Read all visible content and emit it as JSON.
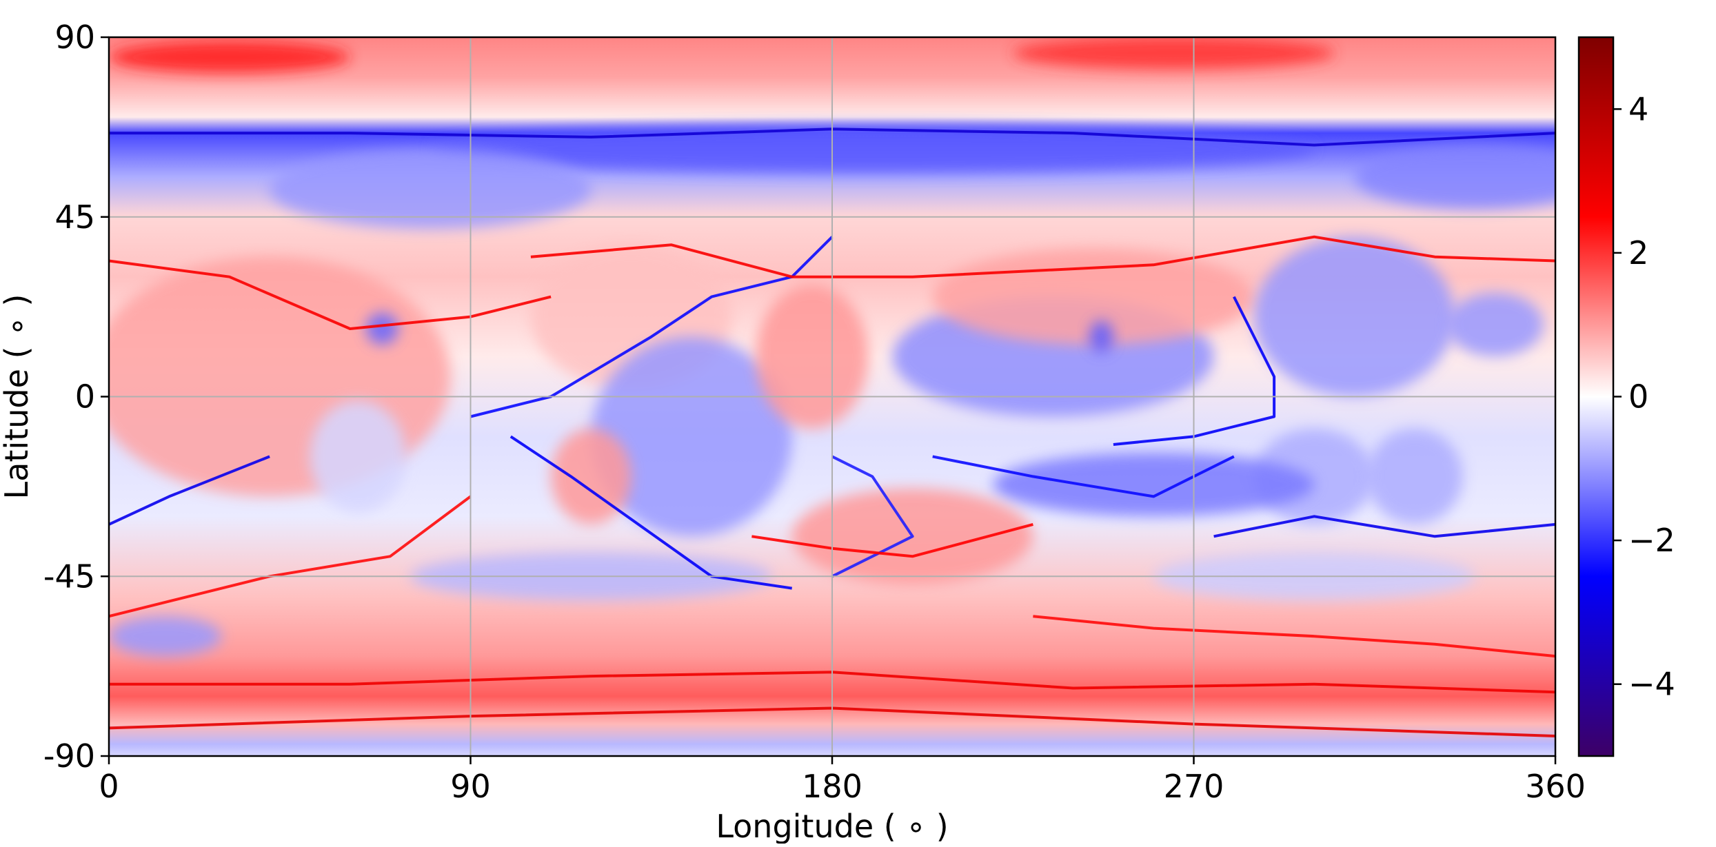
{
  "chart_data": {
    "type": "heatmap",
    "title": "",
    "xlabel": "Longitude ( ∘ )",
    "ylabel": "Latitude ( ∘ )",
    "xlim": [
      0,
      360
    ],
    "ylim": [
      -90,
      90
    ],
    "xticks": [
      {
        "value": 0,
        "label": "0"
      },
      {
        "value": 90,
        "label": "90"
      },
      {
        "value": 180,
        "label": "180"
      },
      {
        "value": 270,
        "label": "270"
      },
      {
        "value": 360,
        "label": "360"
      }
    ],
    "yticks": [
      {
        "value": 90,
        "label": "90"
      },
      {
        "value": 45,
        "label": "45"
      },
      {
        "value": 0,
        "label": "0"
      },
      {
        "value": -45,
        "label": "-45"
      },
      {
        "value": -90,
        "label": "-90"
      }
    ],
    "grid": true,
    "colorbar": {
      "colormap": "seismic",
      "range": [
        -5,
        5
      ],
      "ticks": [
        {
          "value": 4,
          "label": "4"
        },
        {
          "value": 2,
          "label": "2"
        },
        {
          "value": 0,
          "label": "0"
        },
        {
          "value": -2,
          "label": "−2"
        },
        {
          "value": -4,
          "label": "−4"
        }
      ],
      "colors": [
        "#3d0066",
        "#0000ff",
        "#ffffff",
        "#ff0000",
        "#7f0000"
      ]
    },
    "background_field": {
      "description_note": null,
      "lat_bands": [
        {
          "lat": 90,
          "value": 1.2
        },
        {
          "lat": 80,
          "value": 0.9
        },
        {
          "lat": 70,
          "value": 0.2
        },
        {
          "lat": 66,
          "value": -1.8
        },
        {
          "lat": 55,
          "value": -0.8
        },
        {
          "lat": 45,
          "value": 0.4
        },
        {
          "lat": 30,
          "value": 0.6
        },
        {
          "lat": 10,
          "value": 0.2
        },
        {
          "lat": -10,
          "value": -0.3
        },
        {
          "lat": -30,
          "value": -0.2
        },
        {
          "lat": -50,
          "value": 0.6
        },
        {
          "lat": -65,
          "value": 1.0
        },
        {
          "lat": -75,
          "value": 1.6
        },
        {
          "lat": -82,
          "value": 0.7
        },
        {
          "lat": -87,
          "value": -0.7
        },
        {
          "lat": -90,
          "value": -0.4
        }
      ],
      "features": [
        {
          "lon": 30,
          "lat": 85,
          "rx": 30,
          "ry": 4,
          "value": 2.2
        },
        {
          "lon": 265,
          "lat": 86,
          "rx": 40,
          "ry": 4,
          "value": 2.0
        },
        {
          "lon": 190,
          "lat": 62,
          "rx": 110,
          "ry": 6,
          "value": -1.6
        },
        {
          "lon": 80,
          "lat": 52,
          "rx": 40,
          "ry": 10,
          "value": -1.0
        },
        {
          "lon": 340,
          "lat": 55,
          "rx": 30,
          "ry": 8,
          "value": -1.2
        },
        {
          "lon": 40,
          "lat": 5,
          "rx": 45,
          "ry": 30,
          "value": 0.9
        },
        {
          "lon": 62,
          "lat": -15,
          "rx": 12,
          "ry": 14,
          "value": -0.4
        },
        {
          "lon": 68,
          "lat": 17,
          "rx": 4,
          "ry": 4,
          "value": -1.5
        },
        {
          "lon": 14,
          "lat": -60,
          "rx": 14,
          "ry": 5,
          "value": -1.0
        },
        {
          "lon": 130,
          "lat": 20,
          "rx": 25,
          "ry": 18,
          "value": 0.6
        },
        {
          "lon": 145,
          "lat": -10,
          "rx": 25,
          "ry": 25,
          "value": -1.0
        },
        {
          "lon": 120,
          "lat": -20,
          "rx": 10,
          "ry": 12,
          "value": 1.0
        },
        {
          "lon": 175,
          "lat": 10,
          "rx": 14,
          "ry": 18,
          "value": 1.0
        },
        {
          "lon": 235,
          "lat": 10,
          "rx": 40,
          "ry": 15,
          "value": -1.1
        },
        {
          "lon": 245,
          "lat": 25,
          "rx": 40,
          "ry": 12,
          "value": 0.9
        },
        {
          "lon": 247,
          "lat": 15,
          "rx": 3,
          "ry": 4,
          "value": -1.6
        },
        {
          "lon": 310,
          "lat": 20,
          "rx": 25,
          "ry": 20,
          "value": -1.0
        },
        {
          "lon": 300,
          "lat": -20,
          "rx": 15,
          "ry": 12,
          "value": -0.8
        },
        {
          "lon": 325,
          "lat": -20,
          "rx": 12,
          "ry": 12,
          "value": -0.8
        },
        {
          "lon": 260,
          "lat": -22,
          "rx": 40,
          "ry": 8,
          "value": -1.3
        },
        {
          "lon": 200,
          "lat": -35,
          "rx": 30,
          "ry": 12,
          "value": 1.0
        },
        {
          "lon": 345,
          "lat": 18,
          "rx": 12,
          "ry": 8,
          "value": -1.0
        },
        {
          "lon": 120,
          "lat": -45,
          "rx": 45,
          "ry": 6,
          "value": -0.7
        },
        {
          "lon": 300,
          "lat": -45,
          "rx": 40,
          "ry": 6,
          "value": -0.5
        }
      ],
      "fronts": [
        {
          "value": -3.2,
          "points": [
            [
              0,
              66
            ],
            [
              60,
              66
            ],
            [
              120,
              65
            ],
            [
              180,
              67
            ],
            [
              240,
              66
            ],
            [
              300,
              63
            ],
            [
              360,
              66
            ]
          ]
        },
        {
          "value": -2.6,
          "points": [
            [
              100,
              -10
            ],
            [
              115,
              -20
            ],
            [
              150,
              -45
            ],
            [
              170,
              -48
            ]
          ]
        },
        {
          "value": -2.8,
          "points": [
            [
              0,
              -32
            ],
            [
              15,
              -25
            ],
            [
              40,
              -15
            ]
          ]
        },
        {
          "value": -2.8,
          "points": [
            [
              275,
              -35
            ],
            [
              300,
              -30
            ],
            [
              330,
              -35
            ],
            [
              360,
              -32
            ]
          ]
        },
        {
          "value": -2.4,
          "points": [
            [
              205,
              -15
            ],
            [
              230,
              -20
            ],
            [
              260,
              -25
            ],
            [
              280,
              -15
            ]
          ]
        },
        {
          "value": -2.6,
          "points": [
            [
              250,
              -12
            ],
            [
              270,
              -10
            ],
            [
              290,
              -5
            ],
            [
              290,
              5
            ],
            [
              280,
              25
            ]
          ]
        },
        {
          "value": -2.4,
          "points": [
            [
              90,
              -5
            ],
            [
              110,
              0
            ],
            [
              135,
              15
            ],
            [
              150,
              25
            ],
            [
              170,
              30
            ],
            [
              180,
              40
            ]
          ]
        },
        {
          "value": -2.2,
          "points": [
            [
              180,
              -15
            ],
            [
              190,
              -20
            ],
            [
              200,
              -35
            ],
            [
              180,
              -45
            ]
          ]
        },
        {
          "value": 2.8,
          "points": [
            [
              0,
              -72
            ],
            [
              60,
              -72
            ],
            [
              120,
              -70
            ],
            [
              180,
              -69
            ],
            [
              240,
              -73
            ],
            [
              300,
              -72
            ],
            [
              360,
              -74
            ]
          ]
        },
        {
          "value": 3.0,
          "points": [
            [
              0,
              -83
            ],
            [
              90,
              -80
            ],
            [
              180,
              -78
            ],
            [
              270,
              -82
            ],
            [
              360,
              -85
            ]
          ]
        },
        {
          "value": 2.6,
          "points": [
            [
              0,
              34
            ],
            [
              30,
              30
            ],
            [
              60,
              17
            ],
            [
              90,
              20
            ],
            [
              110,
              25
            ]
          ]
        },
        {
          "value": 2.6,
          "points": [
            [
              105,
              35
            ],
            [
              140,
              38
            ],
            [
              170,
              30
            ],
            [
              200,
              30
            ],
            [
              260,
              33
            ],
            [
              300,
              40
            ],
            [
              330,
              35
            ],
            [
              360,
              34
            ]
          ]
        },
        {
          "value": 2.5,
          "points": [
            [
              160,
              -35
            ],
            [
              180,
              -38
            ],
            [
              200,
              -40
            ],
            [
              230,
              -32
            ]
          ]
        },
        {
          "value": 2.4,
          "points": [
            [
              0,
              -55
            ],
            [
              40,
              -45
            ],
            [
              70,
              -40
            ],
            [
              90,
              -25
            ]
          ]
        },
        {
          "value": 2.4,
          "points": [
            [
              230,
              -55
            ],
            [
              260,
              -58
            ],
            [
              300,
              -60
            ],
            [
              330,
              -62
            ],
            [
              360,
              -65
            ]
          ]
        }
      ]
    }
  }
}
